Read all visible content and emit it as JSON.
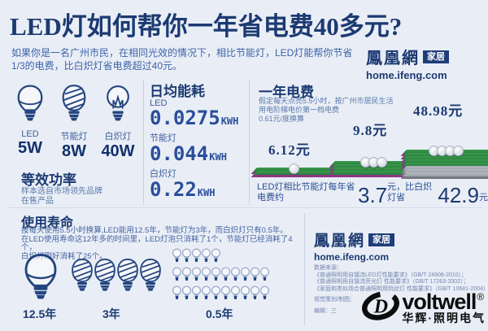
{
  "header": {
    "title": "LED灯如何帮你一年省电费40多元?",
    "subtitle_line1": "如果你是一名广州市民，在相同光效的情况下，相比节能灯，LED灯能帮你节省",
    "subtitle_line2": "1/3的电费，比白炽灯省电费超过40元。"
  },
  "brand": {
    "name": "鳳凰網",
    "badge": "家居",
    "url": "home.ifeng.com"
  },
  "power_section": {
    "heading": "等效功率",
    "note_line1": "样本选自市场领先品牌",
    "note_line2": "在售产品",
    "bulbs": [
      {
        "name": "LED",
        "watt": "5W"
      },
      {
        "name": "节能灯",
        "watt": "8W"
      },
      {
        "name": "白炽灯",
        "watt": "40W"
      }
    ]
  },
  "energy_section": {
    "heading": "日均能耗",
    "items": [
      {
        "label": "LED",
        "value": "0.0275",
        "unit": "KWH"
      },
      {
        "label": "节能灯",
        "value": "0.044",
        "unit": "KWH"
      },
      {
        "label": "白炽灯",
        "value": "0.22",
        "unit": "KWH"
      }
    ]
  },
  "cost_section": {
    "heading": "一年电费",
    "assumption_line1": "假定每天点亮5.5小时，按广州市居民生活",
    "assumption_line2": "用电阶梯电价第一档电费",
    "assumption_line3": "0.61元/度换算",
    "stacks": [
      {
        "value": "6.12元",
        "coins": 1,
        "green_layers": 2,
        "gray_layers": 0
      },
      {
        "value": "9.8元",
        "coins": 3,
        "green_layers": 4,
        "gray_layers": 0
      },
      {
        "value": "48.98元",
        "coins": 4,
        "green_layers": 5,
        "gray_layers": 3
      }
    ],
    "summary_prefix": "LED灯相比节能灯每年省电费约",
    "summary_value1": "3.7",
    "summary_mid": "元，比白炽灯省",
    "summary_value2": "42.9",
    "summary_suffix": "元"
  },
  "lifespan_section": {
    "heading": "使用寿命",
    "desc_line1": "按每天使用5.5小时换算,LED能用12.5年，节能灯为3年，而白炽灯只有0.5年。",
    "desc_line2": "在LED使用寿命这12年多的时间里，LED灯泡只消耗了1个，节能灯已经消耗了4个，",
    "desc_line3": "白炽灯刚好消耗了25个。",
    "groups": [
      {
        "type": "led",
        "label": "12.5年",
        "rows": [
          1
        ],
        "size": 48
      },
      {
        "type": "cfl",
        "label": "3年",
        "rows": [
          4
        ],
        "size": 34
      },
      {
        "type": "tiny",
        "label": "0.5年",
        "rows": [
          5,
          10,
          10
        ],
        "size": 13
      }
    ]
  },
  "footer": {
    "sources_title": "数据来源：",
    "source_line1": "《普通照明用自镇流LED灯性能要求》（GB/T 24908-2010）；",
    "source_line2": "《普通照明用自镇流荧光灯 性能要求》（GB/T 17263-2002）；",
    "source_line3": "《家庭和类似场合普通照明用钨丝灯 性能要求》（GB/T 10681-2004）",
    "credit_line1": "视觉策划/制图：",
    "credit_line2": "编辑：三"
  },
  "watermark": {
    "name": "voltwell",
    "reg": "®",
    "subtitle": "华辉·照明电气"
  },
  "colors": {
    "background": "#e9eef6",
    "navy": "#1c3a72",
    "blue_text": "#3e63a8",
    "lcd_blue": "#2b4e9b",
    "banknote_green": "#2f9140",
    "banknote_purple": "#8e3585",
    "banknote_gray": "#a6abb4",
    "badge_bg": "#1e3d7a",
    "watermark_black": "#0c0c0c"
  },
  "chart_data": [
    {
      "type": "bar",
      "title": "一年电费",
      "categories": [
        "LED灯",
        "节能灯",
        "白炽灯"
      ],
      "values": [
        6.12,
        9.8,
        48.98
      ],
      "ylabel": "元",
      "annotations": [
        "假定每天点亮5.5小时，按广州市居民生活用电阶梯电价第一档电费0.61元/度换算",
        "LED灯相比节能灯每年省电费约3.7元，比白炽灯省42.9元"
      ],
      "legend_position": "none"
    },
    {
      "type": "table",
      "title": "日均能耗",
      "categories": [
        "LED",
        "节能灯",
        "白炽灯"
      ],
      "values": [
        0.0275,
        0.044,
        0.22
      ],
      "ylabel": "KWH"
    },
    {
      "type": "table",
      "title": "等效功率",
      "categories": [
        "LED",
        "节能灯",
        "白炽灯"
      ],
      "values": [
        5,
        8,
        40
      ],
      "ylabel": "W"
    },
    {
      "type": "bar",
      "title": "使用寿命",
      "categories": [
        "LED",
        "节能灯",
        "白炽灯"
      ],
      "values": [
        12.5,
        3,
        0.5
      ],
      "ylabel": "年",
      "annotations": [
        "消耗灯泡数量：LED 1个、节能灯 4个、白炽灯 25个"
      ]
    }
  ]
}
